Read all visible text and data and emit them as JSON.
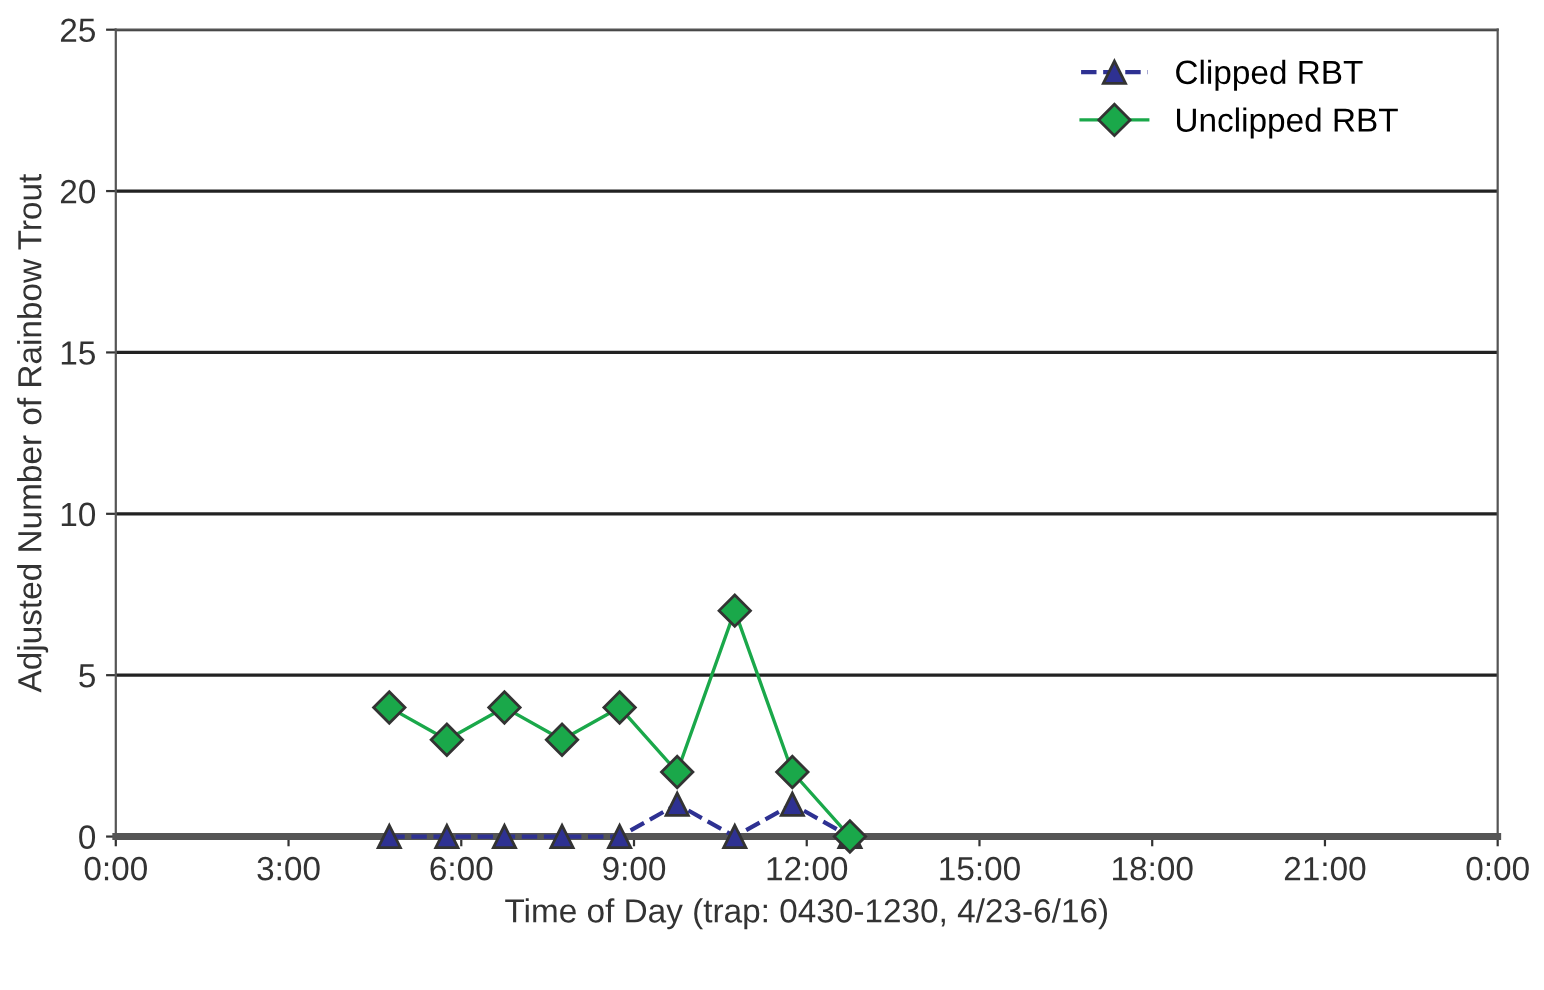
{
  "chart_data": {
    "type": "line",
    "xlabel": "Time of Day (trap: 0430-1230, 4/23-6/16)",
    "ylabel": "Adjusted Number of Rainbow Trout",
    "x": [
      4.75,
      5.75,
      6.75,
      7.75,
      8.75,
      9.75,
      10.75,
      11.75,
      12.75
    ],
    "series": [
      {
        "name": "Clipped RBT",
        "color": "#2e3192",
        "values": [
          0,
          0,
          0,
          0,
          0,
          1,
          0,
          1,
          0
        ],
        "marker": "triangle",
        "line_style": "dashed"
      },
      {
        "name": "Unclipped RBT",
        "color": "#1aa84a",
        "values": [
          4,
          3,
          4,
          3,
          4,
          2,
          7,
          2,
          0
        ],
        "marker": "diamond",
        "line_style": "solid"
      }
    ],
    "xlim": [
      0,
      24
    ],
    "xticks": [
      {
        "value": 0,
        "label": "0:00"
      },
      {
        "value": 3,
        "label": "3:00"
      },
      {
        "value": 6,
        "label": "6:00"
      },
      {
        "value": 9,
        "label": "9:00"
      },
      {
        "value": 12,
        "label": "12:00"
      },
      {
        "value": 15,
        "label": "15:00"
      },
      {
        "value": 18,
        "label": "18:00"
      },
      {
        "value": 21,
        "label": "21:00"
      },
      {
        "value": 24,
        "label": "0:00"
      }
    ],
    "ylim": [
      0,
      25
    ],
    "yticks": [
      0,
      5,
      10,
      15,
      20,
      25
    ],
    "grid": "y",
    "legend": "top right"
  }
}
